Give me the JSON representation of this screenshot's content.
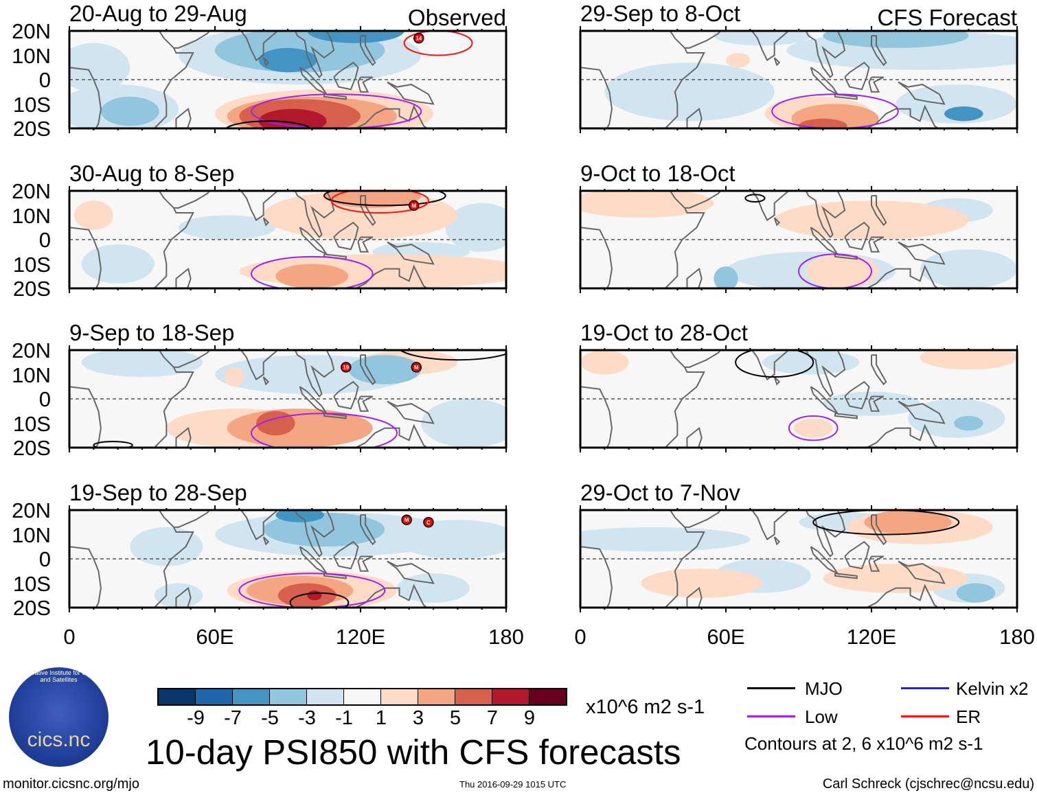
{
  "chart_data": {
    "type": "heatmap",
    "title": "10-day PSI850 with CFS forecasts",
    "units": "x10^6 m2 s-1",
    "contour_note": "Contours at 2, 6 x10^6 m2 s-1",
    "lat_ticks": [
      "20N",
      "10N",
      "0",
      "10S",
      "20S"
    ],
    "lon_ticks": [
      "0",
      "60E",
      "120E",
      "180"
    ],
    "lon_range": [
      0,
      180
    ],
    "lat_range": [
      -20,
      20
    ],
    "colorbar": {
      "ticks": [
        "-9",
        "-7",
        "-5",
        "-3",
        "-1",
        "1",
        "3",
        "5",
        "7",
        "9"
      ],
      "colors": [
        "#0a3569",
        "#2166ac",
        "#4393c3",
        "#92c5de",
        "#d1e5f0",
        "#f7f7f7",
        "#fddbc7",
        "#f4a582",
        "#d6604d",
        "#b2182b",
        "#67001f"
      ]
    },
    "legend": [
      {
        "label": "MJO",
        "color": "#000000"
      },
      {
        "label": "Kelvin x2",
        "color": "#2020e0"
      },
      {
        "label": "Low",
        "color": "#a020f0"
      },
      {
        "label": "ER",
        "color": "#ff1010"
      }
    ],
    "panels": [
      {
        "title": "20-Aug to 29-Aug",
        "tag": "Observed",
        "anoms": [
          [
            20,
            -12,
            25,
            10,
            -2
          ],
          [
            10,
            5,
            15,
            10,
            -2
          ],
          [
            95,
            10,
            50,
            12,
            -2
          ],
          [
            95,
            12,
            35,
            9,
            -4
          ],
          [
            90,
            8,
            12,
            5,
            -6
          ],
          [
            118,
            20,
            20,
            5,
            -6
          ],
          [
            25,
            -13,
            12,
            6,
            -4
          ],
          [
            105,
            -14,
            45,
            10,
            2
          ],
          [
            100,
            -15,
            35,
            8,
            4
          ],
          [
            95,
            -15,
            25,
            7,
            6
          ],
          [
            92,
            -17,
            14,
            5,
            8
          ]
        ],
        "contours": [
          [
            "low",
            110,
            -13,
            35,
            7
          ],
          [
            "mjo",
            82,
            -21,
            18,
            4
          ],
          [
            "er",
            152,
            15,
            14,
            5
          ]
        ],
        "storms": [
          [
            144,
            17,
            "14"
          ]
        ]
      },
      {
        "title": "30-Aug to 8-Sep",
        "tag": "",
        "anoms": [
          [
            10,
            10,
            8,
            6,
            2
          ],
          [
            20,
            -10,
            15,
            8,
            -2
          ],
          [
            65,
            5,
            20,
            5,
            -2
          ],
          [
            170,
            5,
            15,
            10,
            -2
          ],
          [
            145,
            -5,
            20,
            4,
            -2
          ],
          [
            120,
            10,
            40,
            10,
            2
          ],
          [
            125,
            18,
            20,
            5,
            4
          ],
          [
            130,
            -13,
            60,
            7,
            2
          ],
          [
            100,
            -15,
            15,
            5,
            4
          ]
        ],
        "contours": [
          [
            "low",
            100,
            -14,
            25,
            7
          ],
          [
            "mjo",
            130,
            18,
            25,
            4
          ],
          [
            "er",
            128,
            16,
            20,
            5
          ]
        ],
        "storms": [
          [
            142,
            14,
            "M"
          ]
        ]
      },
      {
        "title": "9-Sep to 18-Sep",
        "tag": "",
        "anoms": [
          [
            100,
            10,
            40,
            8,
            -2
          ],
          [
            130,
            12,
            15,
            6,
            -4
          ],
          [
            165,
            -10,
            20,
            10,
            -2
          ],
          [
            30,
            15,
            25,
            6,
            -2
          ],
          [
            68,
            9,
            4,
            4,
            2
          ],
          [
            140,
            15,
            20,
            5,
            2
          ],
          [
            70,
            -12,
            30,
            8,
            2
          ],
          [
            95,
            -12,
            30,
            8,
            4
          ],
          [
            85,
            -10,
            8,
            5,
            6
          ]
        ],
        "contours": [
          [
            "low",
            105,
            -14,
            30,
            8
          ],
          [
            "mjo",
            160,
            22,
            25,
            6
          ],
          [
            "mjo",
            18,
            -19,
            8,
            1.5
          ]
        ],
        "storms": [
          [
            114,
            13,
            "19"
          ],
          [
            143,
            13,
            "M"
          ]
        ]
      },
      {
        "title": "19-Sep to 28-Sep",
        "tag": "",
        "anoms": [
          [
            110,
            10,
            50,
            9,
            -2
          ],
          [
            105,
            12,
            25,
            7,
            -4
          ],
          [
            95,
            18,
            10,
            3,
            -6
          ],
          [
            160,
            8,
            25,
            8,
            -2
          ],
          [
            40,
            5,
            15,
            8,
            -2
          ],
          [
            150,
            -12,
            15,
            6,
            -2
          ],
          [
            45,
            -15,
            10,
            5,
            -2
          ],
          [
            100,
            -13,
            35,
            8,
            2
          ],
          [
            95,
            -13,
            22,
            6,
            4
          ],
          [
            98,
            -15,
            12,
            5,
            6
          ],
          [
            101,
            -15,
            3,
            2,
            8
          ]
        ],
        "contours": [
          [
            "low",
            100,
            -13,
            30,
            7
          ],
          [
            "mjo",
            103,
            -18,
            12,
            4
          ]
        ],
        "storms": [
          [
            139,
            16,
            "M"
          ],
          [
            148,
            15,
            "C"
          ]
        ]
      },
      {
        "title": "29-Sep to 8-Oct",
        "tag": "CFS Forecast",
        "anoms": [
          [
            45,
            -5,
            35,
            12,
            -2
          ],
          [
            140,
            12,
            55,
            8,
            -2
          ],
          [
            130,
            18,
            30,
            5,
            -4
          ],
          [
            155,
            -10,
            25,
            8,
            -2
          ],
          [
            158,
            -14,
            8,
            3,
            -6
          ],
          [
            75,
            18,
            20,
            4,
            -2
          ],
          [
            65,
            8,
            5,
            3,
            2
          ],
          [
            98,
            -14,
            22,
            7,
            2
          ],
          [
            105,
            -16,
            18,
            6,
            4
          ],
          [
            100,
            -19,
            10,
            3,
            6
          ]
        ],
        "contours": [
          [
            "low",
            105,
            -13,
            26,
            7
          ]
        ],
        "storms": []
      },
      {
        "title": "9-Oct to 18-Oct",
        "tag": "",
        "anoms": [
          [
            95,
            -13,
            35,
            8,
            -2
          ],
          [
            155,
            12,
            15,
            5,
            -2
          ],
          [
            160,
            -12,
            20,
            8,
            -2
          ],
          [
            60,
            -16,
            5,
            5,
            -4
          ],
          [
            25,
            15,
            30,
            6,
            2
          ],
          [
            120,
            8,
            40,
            8,
            2
          ],
          [
            108,
            -13,
            15,
            7,
            2
          ]
        ],
        "contours": [
          [
            "low",
            105,
            -13,
            15,
            7
          ],
          [
            "mjo",
            72,
            17,
            4,
            1.5
          ]
        ],
        "storms": []
      },
      {
        "title": "19-Oct to 28-Oct",
        "tag": "",
        "anoms": [
          [
            95,
            15,
            20,
            5,
            -2
          ],
          [
            155,
            -8,
            20,
            8,
            -2
          ],
          [
            160,
            -10,
            6,
            3,
            -4
          ],
          [
            120,
            -2,
            20,
            5,
            -2
          ],
          [
            10,
            15,
            10,
            5,
            2
          ],
          [
            160,
            17,
            20,
            5,
            2
          ],
          [
            96,
            -12,
            8,
            4,
            2
          ]
        ],
        "contours": [
          [
            "low",
            96,
            -12,
            10,
            5
          ],
          [
            "mjo",
            80,
            15,
            16,
            6
          ]
        ],
        "storms": []
      },
      {
        "title": "29-Oct to 7-Nov",
        "tag": "",
        "anoms": [
          [
            30,
            8,
            40,
            5,
            -2
          ],
          [
            110,
            15,
            20,
            4,
            -2
          ],
          [
            75,
            -7,
            20,
            7,
            -2
          ],
          [
            160,
            -12,
            15,
            6,
            -2
          ],
          [
            163,
            -14,
            8,
            4,
            -4
          ],
          [
            140,
            13,
            30,
            7,
            2
          ],
          [
            135,
            15,
            18,
            5,
            4
          ],
          [
            50,
            -10,
            25,
            6,
            2
          ],
          [
            130,
            -8,
            30,
            6,
            2
          ]
        ],
        "contours": [
          [
            "mjo",
            126,
            15,
            30,
            5
          ]
        ],
        "storms": []
      }
    ]
  },
  "footer": {
    "left": "monitor.cicsnc.org/mjo",
    "center": "Thu 2016-09-29 1015 UTC",
    "right": "Carl Schreck (cjschrec@ncsu.edu)"
  },
  "logo": {
    "text": "cics.nc",
    "arc": "Cooperative Institute for Climate and Satellites"
  }
}
